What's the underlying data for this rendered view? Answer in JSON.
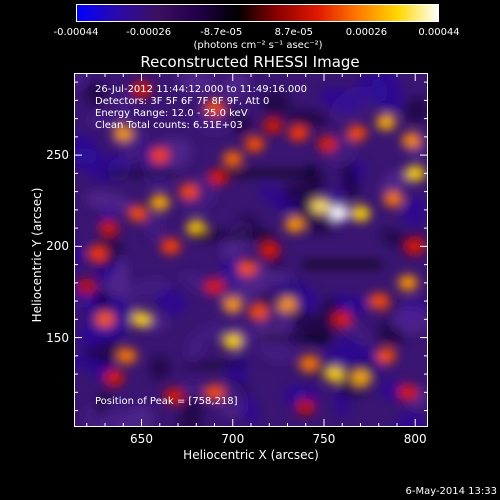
{
  "colorbar": {
    "ticks": [
      "-0.00044",
      "-0.00026",
      "-8.7e-05",
      "8.7e-05",
      "0.00026",
      "0.00044"
    ],
    "unit_label": "(photons cm⁻² s⁻¹ asec⁻²)",
    "colors": [
      "#0000ff",
      "#2a0aaa",
      "#3b1060",
      "#22004a",
      "#000000",
      "#8b0000",
      "#e01800",
      "#ff7a00",
      "#ffd800",
      "#ffffff"
    ]
  },
  "chart_data": {
    "type": "heatmap",
    "title": "Reconstructed RHESSI Image",
    "xlabel": "Heliocentric X (arcsec)",
    "ylabel": "Heliocentric Y (arcsec)",
    "xlim": [
      613,
      807
    ],
    "ylim": [
      101,
      295
    ],
    "xticks": [
      650,
      700,
      750,
      800
    ],
    "yticks": [
      150,
      200,
      250
    ],
    "color_range": [
      -0.00044,
      0.00044
    ],
    "info_lines": [
      "26-Jul-2012 11:44:12.000 to 11:49:16.000",
      "Detectors: 3F 5F 6F 7F 8F 9F, Att 0",
      "Energy Range: 12.0 - 25.0 keV",
      "Clean     Total counts: 6.51E+03"
    ],
    "peak_text": "Position of Peak = [758,218]",
    "peak_position": [
      758,
      218
    ]
  },
  "footer": {
    "timestamp": "6-May-2014 13:33"
  }
}
